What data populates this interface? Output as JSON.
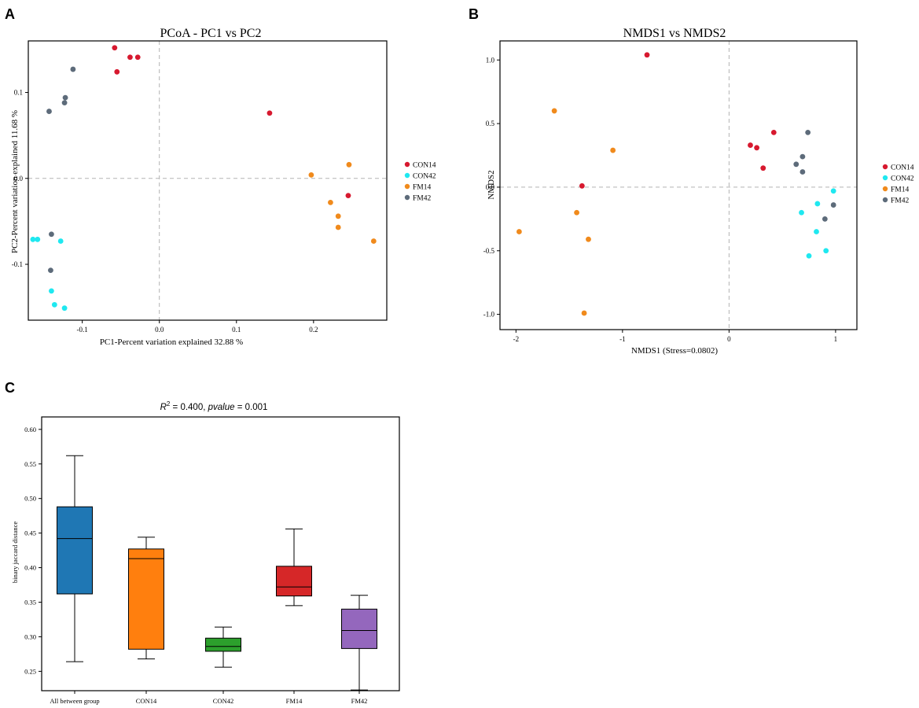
{
  "panels": {
    "A": {
      "letter": "A"
    },
    "B": {
      "letter": "B"
    },
    "C": {
      "letter": "C"
    }
  },
  "colors": {
    "CON14": "#d7192f",
    "CON42": "#1fe8f0",
    "FM14": "#f08a1c",
    "FM42": "#5d6b7a"
  },
  "chart_data": [
    {
      "id": "pcoa",
      "type": "scatter",
      "title": "PCoA - PC1 vs PC2",
      "xlabel": "PC1-Percent variation explained 32.88 %",
      "ylabel": "PC2-Percent variation explained 11.68 %",
      "xlim": [
        -0.17,
        0.295
      ],
      "ylim": [
        -0.165,
        0.16
      ],
      "xticks": [
        {
          "v": -0.1,
          "label": "-0.1"
        },
        {
          "v": 0,
          "label": "0.0"
        },
        {
          "v": 0.1,
          "label": "0.1"
        },
        {
          "v": 0.2,
          "label": "0.2"
        }
      ],
      "yticks": [
        {
          "v": 0.1,
          "label": "0.1"
        },
        {
          "v": 0,
          "label": "0.0"
        },
        {
          "v": -0.1,
          "label": "-0.1"
        }
      ],
      "legend": [
        "CON14",
        "CON42",
        "FM14",
        "FM42"
      ],
      "series": [
        {
          "name": "CON14",
          "points": [
            [
              -0.058,
              0.152
            ],
            [
              -0.038,
              0.141
            ],
            [
              -0.028,
              0.141
            ],
            [
              -0.055,
              0.124
            ],
            [
              0.143,
              0.076
            ],
            [
              0.245,
              -0.02
            ]
          ]
        },
        {
          "name": "CON42",
          "points": [
            [
              -0.164,
              -0.071
            ],
            [
              -0.158,
              -0.071
            ],
            [
              -0.128,
              -0.073
            ],
            [
              -0.14,
              -0.131
            ],
            [
              -0.136,
              -0.147
            ],
            [
              -0.123,
              -0.151
            ]
          ]
        },
        {
          "name": "FM14",
          "points": [
            [
              0.197,
              0.004
            ],
            [
              0.246,
              0.016
            ],
            [
              0.222,
              -0.028
            ],
            [
              0.232,
              -0.044
            ],
            [
              0.232,
              -0.057
            ],
            [
              0.278,
              -0.073
            ]
          ]
        },
        {
          "name": "FM42",
          "points": [
            [
              -0.112,
              0.127
            ],
            [
              -0.122,
              0.094
            ],
            [
              -0.123,
              0.088
            ],
            [
              -0.143,
              0.078
            ],
            [
              -0.14,
              -0.065
            ],
            [
              -0.141,
              -0.107
            ]
          ]
        }
      ]
    },
    {
      "id": "nmds",
      "type": "scatter",
      "title": "NMDS1 vs NMDS2",
      "xlabel": "NMDS1 (Stress=0.0802)",
      "ylabel": "NMDS2",
      "xlim": [
        -2.15,
        1.2
      ],
      "ylim": [
        -1.12,
        1.15
      ],
      "xticks": [
        {
          "v": -2,
          "label": "-2"
        },
        {
          "v": -1,
          "label": "-1"
        },
        {
          "v": 0,
          "label": "0"
        },
        {
          "v": 1,
          "label": "1"
        }
      ],
      "yticks": [
        {
          "v": 1,
          "label": "1.0"
        },
        {
          "v": 0.5,
          "label": "0.5"
        },
        {
          "v": 0,
          "label": "0.0"
        },
        {
          "v": -0.5,
          "label": "-0.5"
        },
        {
          "v": -1,
          "label": "-1.0"
        }
      ],
      "legend": [
        "CON14",
        "CON42",
        "FM14",
        "FM42"
      ],
      "series": [
        {
          "name": "CON14",
          "points": [
            [
              -0.77,
              1.04
            ],
            [
              0.42,
              0.43
            ],
            [
              0.2,
              0.33
            ],
            [
              0.26,
              0.31
            ],
            [
              0.32,
              0.15
            ],
            [
              -1.38,
              0.01
            ]
          ]
        },
        {
          "name": "CON42",
          "points": [
            [
              0.98,
              -0.03
            ],
            [
              0.83,
              -0.13
            ],
            [
              0.68,
              -0.2
            ],
            [
              0.82,
              -0.35
            ],
            [
              0.91,
              -0.5
            ],
            [
              0.75,
              -0.54
            ]
          ]
        },
        {
          "name": "FM14",
          "points": [
            [
              -1.64,
              0.6
            ],
            [
              -1.09,
              0.29
            ],
            [
              -1.43,
              -0.2
            ],
            [
              -1.97,
              -0.35
            ],
            [
              -1.32,
              -0.41
            ],
            [
              -1.36,
              -0.99
            ]
          ]
        },
        {
          "name": "FM42",
          "points": [
            [
              0.74,
              0.43
            ],
            [
              0.69,
              0.24
            ],
            [
              0.63,
              0.18
            ],
            [
              0.69,
              0.12
            ],
            [
              0.98,
              -0.14
            ],
            [
              0.9,
              -0.25
            ]
          ]
        }
      ]
    },
    {
      "id": "anosim",
      "type": "box",
      "title_r2": "R",
      "title_sup": "2",
      "title_rest": " = 0.400, ",
      "title_p": "pvalue",
      "title_pval": " = 0.001",
      "ylabel": "binary jaccard distance",
      "ylim": [
        0.222,
        0.618
      ],
      "yticks": [
        {
          "v": 0.6,
          "label": "0.60"
        },
        {
          "v": 0.55,
          "label": "0.55"
        },
        {
          "v": 0.5,
          "label": "0.50"
        },
        {
          "v": 0.45,
          "label": "0.45"
        },
        {
          "v": 0.4,
          "label": "0.40"
        },
        {
          "v": 0.35,
          "label": "0.35"
        },
        {
          "v": 0.3,
          "label": "0.30"
        },
        {
          "v": 0.25,
          "label": "0.25"
        }
      ],
      "categories": [
        "All between group",
        "CON14",
        "CON42",
        "FM14",
        "FM42"
      ],
      "boxes": [
        {
          "name": "All between group",
          "color": "#1f77b4",
          "whisker_low": 0.264,
          "q1": 0.362,
          "median": 0.442,
          "q3": 0.488,
          "whisker_high": 0.562
        },
        {
          "name": "CON14",
          "color": "#ff7f0e",
          "whisker_low": 0.268,
          "q1": 0.282,
          "median": 0.413,
          "q3": 0.427,
          "whisker_high": 0.444
        },
        {
          "name": "CON42",
          "color": "#2ca02c",
          "whisker_low": 0.256,
          "q1": 0.279,
          "median": 0.286,
          "q3": 0.298,
          "whisker_high": 0.314
        },
        {
          "name": "FM14",
          "color": "#d62728",
          "whisker_low": 0.345,
          "q1": 0.359,
          "median": 0.372,
          "q3": 0.402,
          "whisker_high": 0.456
        },
        {
          "name": "FM42",
          "color": "#9467bd",
          "whisker_low": 0.223,
          "q1": 0.283,
          "median": 0.309,
          "q3": 0.34,
          "whisker_high": 0.36
        }
      ]
    }
  ]
}
